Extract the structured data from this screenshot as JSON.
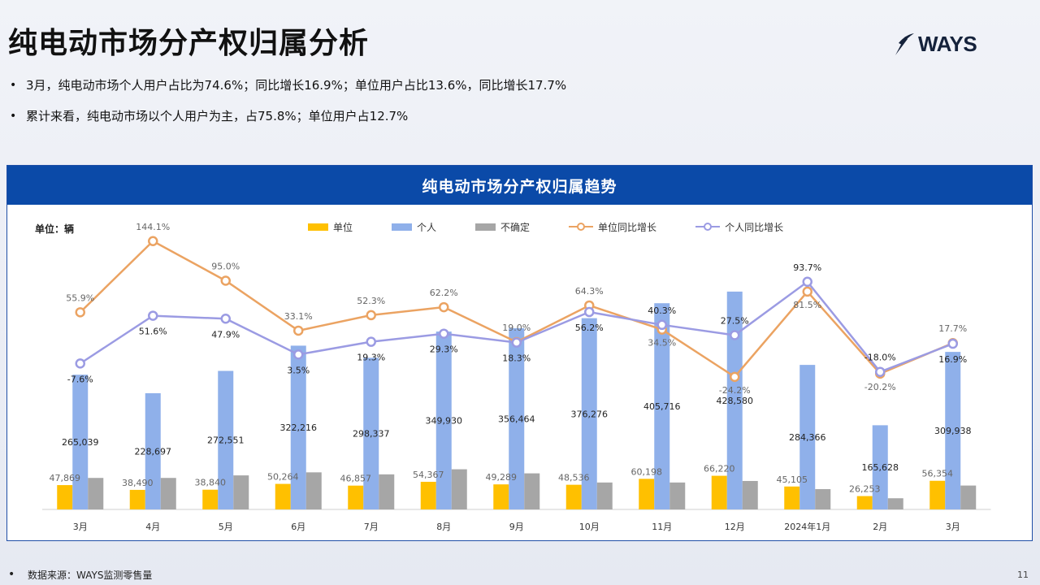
{
  "page": {
    "title": "纯电动市场分产权归属分析",
    "bullets": [
      "3月，纯电动市场个人用户占比为74.6%；同比增长16.9%；单位用户占比13.6%，同比增长17.7%",
      "累计来看，纯电动市场以个人用户为主，占75.8%；单位用户占12.7%"
    ],
    "logo_text": "WAYS",
    "footer": "数据来源：WAYS监测零售量",
    "page_number": "11",
    "bullet_glyph": "•"
  },
  "chart_data": {
    "type": "bar",
    "title": "纯电动市场分产权归属趋势",
    "unit_label": "单位：辆",
    "categories": [
      "3月",
      "4月",
      "5月",
      "6月",
      "7月",
      "8月",
      "9月",
      "10月",
      "11月",
      "12月",
      "2024年1月",
      "2月",
      "3月"
    ],
    "series": [
      {
        "name": "单位",
        "kind": "bar",
        "color": "#ffc000",
        "values": [
          47869,
          38490,
          38840,
          50264,
          46857,
          54367,
          49289,
          48536,
          60198,
          66220,
          45105,
          26253,
          56354
        ],
        "labels": [
          "47,869",
          "38,490",
          "38,840",
          "50,264",
          "46,857",
          "54,367",
          "49,289",
          "48,536",
          "60,198",
          "66,220",
          "45,105",
          "26,253",
          "56,354"
        ]
      },
      {
        "name": "个人",
        "kind": "bar",
        "color": "#8fb0ea",
        "values": [
          265039,
          228697,
          272551,
          322216,
          298337,
          349930,
          356464,
          376276,
          405716,
          428580,
          284366,
          165628,
          309938
        ],
        "labels": [
          "265,039",
          "228,697",
          "272,551",
          "322,216",
          "298,337",
          "349,930",
          "356,464",
          "376,276",
          "405,716",
          "428,580",
          "284,366",
          "165,628",
          "309,938"
        ]
      },
      {
        "name": "不确定",
        "kind": "bar",
        "color": "#a6a6a6",
        "values": [
          62000,
          62000,
          67000,
          73000,
          69000,
          79000,
          71000,
          53000,
          53000,
          56000,
          40000,
          22000,
          47000
        ],
        "labels": []
      },
      {
        "name": "单位同比增长",
        "kind": "line",
        "color": "#eba362",
        "values": [
          55.9,
          144.1,
          95.0,
          33.1,
          52.3,
          62.2,
          19.0,
          64.3,
          34.5,
          -24.2,
          81.5,
          -20.2,
          17.7
        ],
        "labels": [
          "55.9%",
          "144.1%",
          "95.0%",
          "33.1%",
          "52.3%",
          "62.2%",
          "19.0%",
          "64.3%",
          "34.5%",
          "-24.2%",
          "81.5%",
          "-20.2%",
          "17.7%"
        ]
      },
      {
        "name": "个人同比增长",
        "kind": "line",
        "color": "#9b9be3",
        "values": [
          -7.6,
          51.6,
          47.9,
          3.5,
          19.3,
          29.3,
          18.3,
          56.2,
          40.3,
          27.5,
          93.7,
          -18.0,
          16.9
        ],
        "labels": [
          "-7.6%",
          "51.6%",
          "47.9%",
          "3.5%",
          "19.3%",
          "29.3%",
          "18.3%",
          "56.2%",
          "40.3%",
          "27.5%",
          "93.7%",
          "-18.0%",
          "16.9%"
        ]
      }
    ],
    "bar_ylim": [
      0,
      430000
    ],
    "line_ylim": [
      -115,
      165
    ],
    "grid": false,
    "legend_position": "top-center"
  }
}
